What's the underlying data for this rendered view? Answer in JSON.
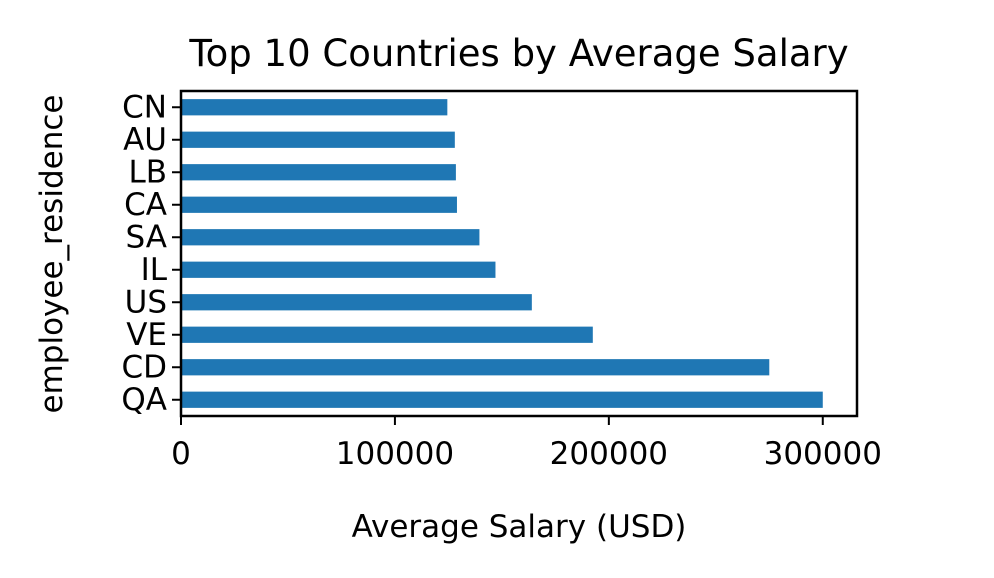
{
  "chart_data": {
    "type": "bar",
    "orientation": "horizontal",
    "title": "Top 10 Countries by Average Salary",
    "xlabel": "Average Salary (USD)",
    "ylabel": "employee_residence",
    "categories": [
      "QA",
      "CD",
      "VE",
      "US",
      "IL",
      "SA",
      "CA",
      "LB",
      "AU",
      "CN"
    ],
    "values": [
      300000,
      275000,
      192500,
      164000,
      147000,
      139500,
      129000,
      128500,
      128000,
      124500
    ],
    "xlim": [
      0,
      316000
    ],
    "xticks": [
      0,
      100000,
      200000,
      300000
    ],
    "xtick_labels": [
      "0",
      "100000",
      "200000",
      "300000"
    ],
    "grid": false,
    "bar_color": "#1f77b4"
  }
}
